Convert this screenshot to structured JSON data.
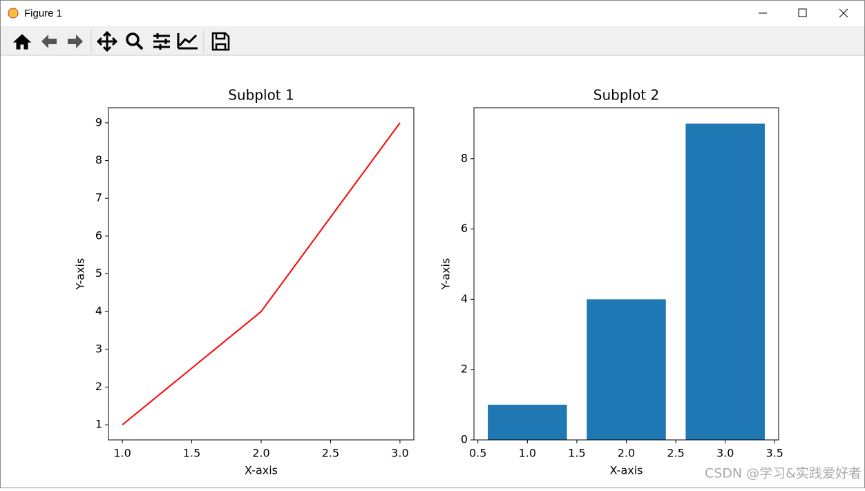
{
  "window": {
    "title": "Figure 1"
  },
  "watermark": "CSDN @学习&实践爱好者",
  "chart_data": [
    {
      "type": "line",
      "title": "Subplot 1",
      "x_label": "X-axis",
      "y_label": "Y-axis",
      "x": [
        1,
        2,
        3
      ],
      "values": [
        1,
        4,
        9
      ],
      "color": "#ff0000",
      "xlim": [
        0.9,
        3.1
      ],
      "ylim": [
        0.6,
        9.4
      ],
      "xticks": [
        {
          "value": 1,
          "label": "1.0"
        },
        1.5,
        {
          "value": 2,
          "label": "2.0"
        },
        2.5,
        {
          "value": 3,
          "label": "3.0"
        }
      ],
      "yticks": [
        1,
        2,
        3,
        4,
        5,
        6,
        7,
        8,
        9
      ]
    },
    {
      "type": "bar",
      "title": "Subplot 2",
      "x_label": "X-axis",
      "y_label": "Y-axis",
      "x": [
        1,
        2,
        3
      ],
      "values": [
        1,
        4,
        9
      ],
      "color": "#1f77b4",
      "bar_width": 0.8,
      "xlim": [
        0.46,
        3.54
      ],
      "ylim": [
        0,
        9.45
      ],
      "xticks": [
        0.5,
        {
          "value": 1,
          "label": "1.0"
        },
        1.5,
        {
          "value": 2,
          "label": "2.0"
        },
        2.5,
        {
          "value": 3,
          "label": "3.0"
        },
        3.5
      ],
      "yticks": [
        0,
        2,
        4,
        6,
        8
      ]
    }
  ]
}
